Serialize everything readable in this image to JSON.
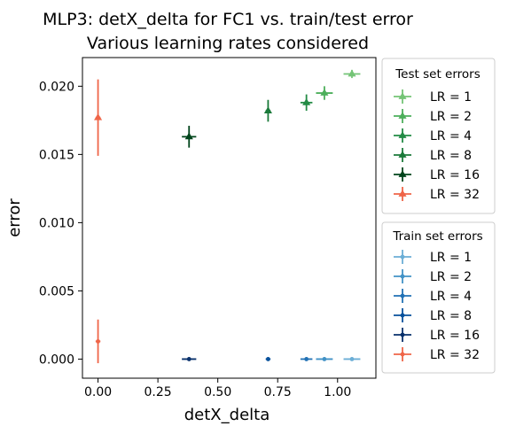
{
  "chart_data": {
    "type": "scatter",
    "title_lines": [
      "MLP3: detX_delta for FC1 vs. train/test error",
      "Various learning rates considered"
    ],
    "xlabel": "detX_delta",
    "ylabel": "error",
    "xlim": [
      -0.065,
      1.16
    ],
    "ylim": [
      -0.0014,
      0.0221
    ],
    "xticks": [
      0.0,
      0.25,
      0.5,
      0.75,
      1.0
    ],
    "xtick_labels": [
      "0.00",
      "0.25",
      "0.50",
      "0.75",
      "1.00"
    ],
    "yticks": [
      0.0,
      0.005,
      0.01,
      0.015,
      0.02
    ],
    "ytick_labels": [
      "0.000",
      "0.005",
      "0.010",
      "0.015",
      "0.020"
    ],
    "grid": false,
    "legends": [
      {
        "title": "Test set errors",
        "placement": "outside-right-top",
        "series": [
          {
            "name": "LR = 1",
            "color": "#74c476",
            "marker": "triangle",
            "x": 1.06,
            "y": 0.0209,
            "xerr": 0.035,
            "yerr": 0.0003
          },
          {
            "name": "LR = 2",
            "color": "#4daf5b",
            "marker": "triangle",
            "x": 0.945,
            "y": 0.0195,
            "xerr": 0.035,
            "yerr": 0.0005
          },
          {
            "name": "LR = 4",
            "color": "#238b45",
            "marker": "triangle",
            "x": 0.87,
            "y": 0.0188,
            "xerr": 0.025,
            "yerr": 0.0006
          },
          {
            "name": "LR = 8",
            "color": "#1b7a3a",
            "marker": "triangle",
            "x": 0.71,
            "y": 0.0182,
            "xerr": 0.01,
            "yerr": 0.0008
          },
          {
            "name": "LR = 16",
            "color": "#00441b",
            "marker": "triangle",
            "x": 0.38,
            "y": 0.0163,
            "xerr": 0.03,
            "yerr": 0.0008
          },
          {
            "name": "LR = 32",
            "color": "#ef6548",
            "marker": "triangle",
            "x": 0.0,
            "y": 0.0177,
            "xerr": 0.01,
            "yerr": 0.0028
          }
        ]
      },
      {
        "title": "Train set errors",
        "placement": "outside-right-bottom",
        "series": [
          {
            "name": "LR = 1",
            "color": "#6baed6",
            "marker": "circle",
            "x": 1.06,
            "y": 0.0,
            "xerr": 0.035,
            "yerr": 5e-05
          },
          {
            "name": "LR = 2",
            "color": "#4292c6",
            "marker": "circle",
            "x": 0.945,
            "y": 0.0,
            "xerr": 0.035,
            "yerr": 5e-05
          },
          {
            "name": "LR = 4",
            "color": "#2171b5",
            "marker": "circle",
            "x": 0.87,
            "y": 0.0,
            "xerr": 0.025,
            "yerr": 5e-05
          },
          {
            "name": "LR = 8",
            "color": "#08519c",
            "marker": "circle",
            "x": 0.71,
            "y": 0.0,
            "xerr": 0.01,
            "yerr": 5e-05
          },
          {
            "name": "LR = 16",
            "color": "#08306b",
            "marker": "circle",
            "x": 0.38,
            "y": 0.0,
            "xerr": 0.03,
            "yerr": 5e-05
          },
          {
            "name": "LR = 32",
            "color": "#ef6548",
            "marker": "circle",
            "x": 0.0,
            "y": 0.0013,
            "xerr": 0.01,
            "yerr": 0.0016
          }
        ]
      }
    ]
  }
}
